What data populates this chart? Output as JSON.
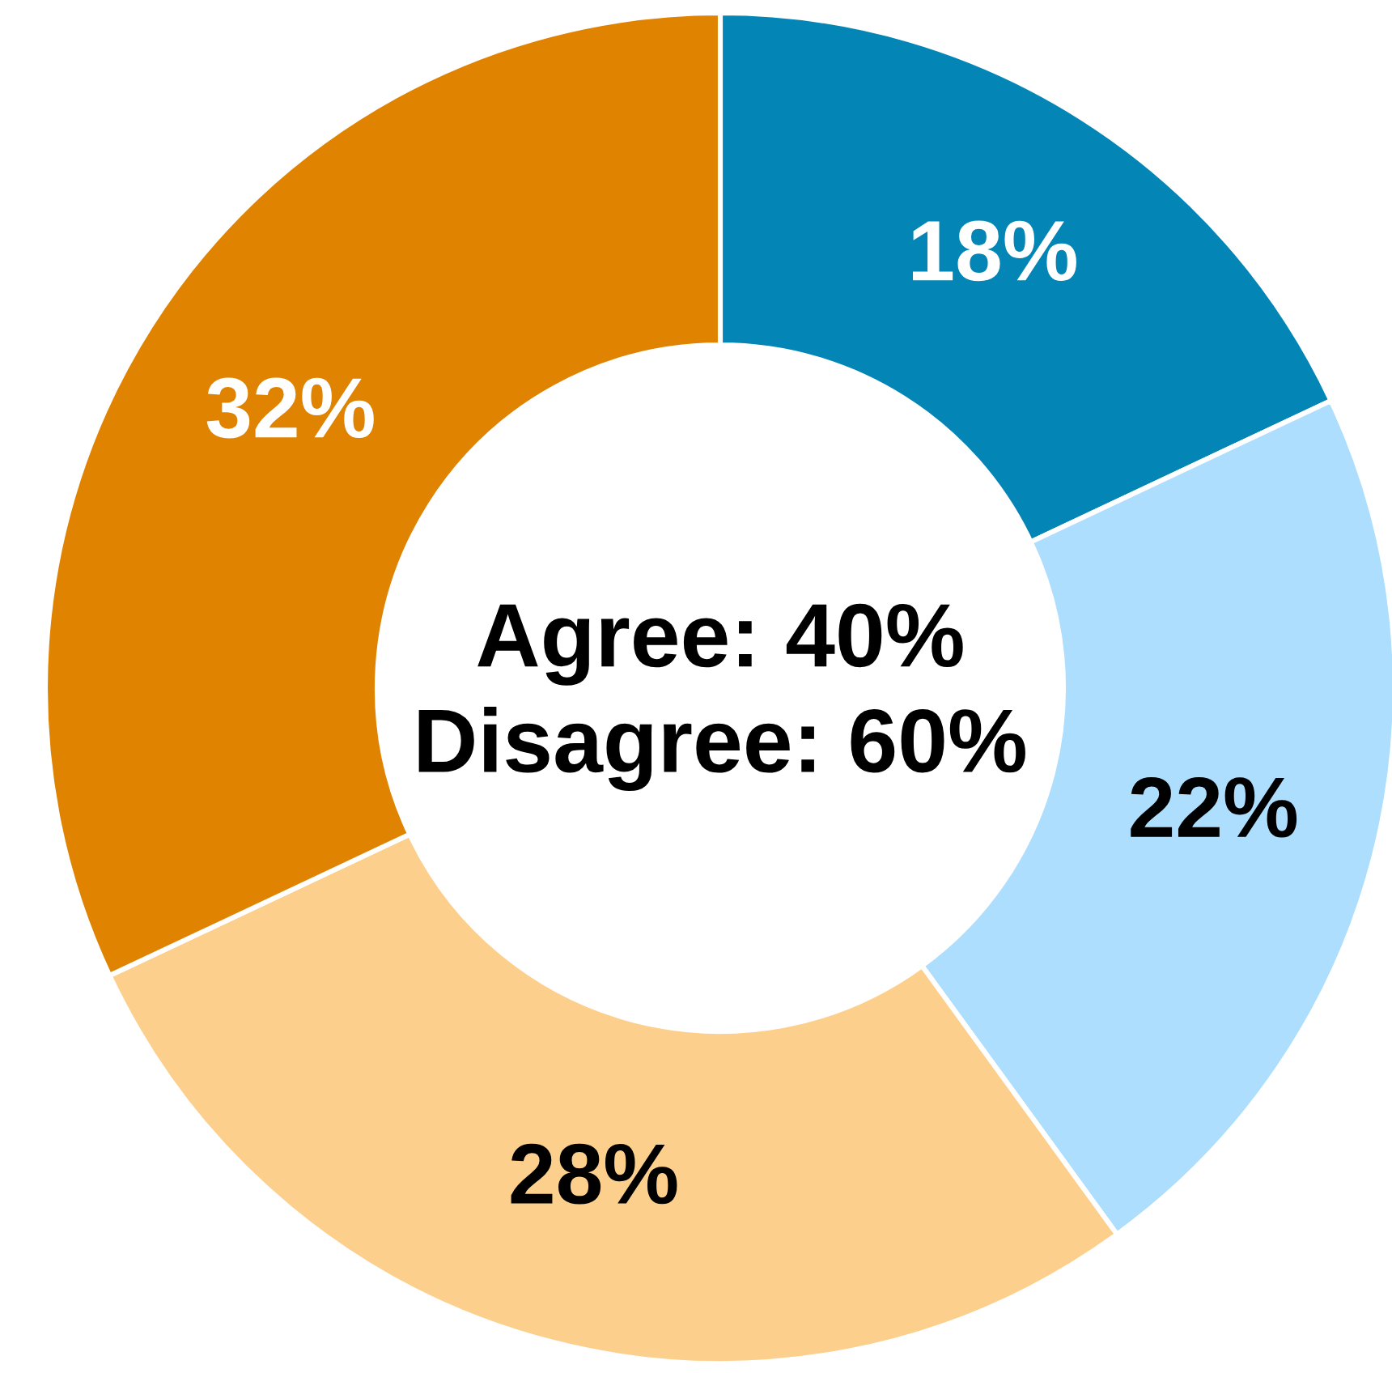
{
  "chart_data": {
    "type": "donut",
    "categories": [
      null,
      null,
      null,
      null
    ],
    "values": [
      18,
      22,
      28,
      32
    ],
    "colors": [
      "#0385b5",
      "#aedefd",
      "#fdcf8c",
      "#df8300"
    ],
    "value_labels": [
      "18%",
      "22%",
      "28%",
      "32%"
    ],
    "annotations": [
      "Agree: 40%",
      "Disagree: 60%"
    ]
  }
}
